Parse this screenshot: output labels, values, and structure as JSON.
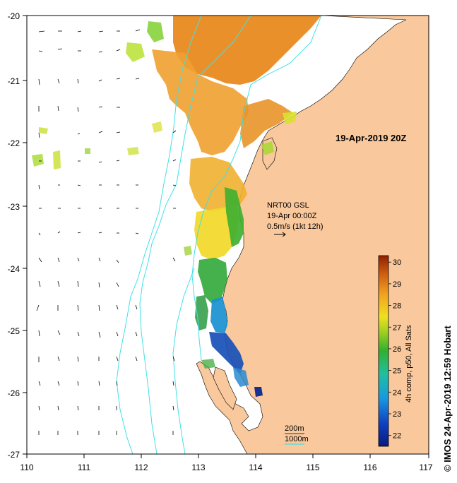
{
  "map": {
    "lon_range": [
      110,
      117
    ],
    "lat_range": [
      -27,
      -20
    ],
    "x_ticks": [
      "110",
      "111",
      "112",
      "113",
      "114",
      "115",
      "116",
      "117"
    ],
    "y_ticks": [
      "-20",
      "-21",
      "-22",
      "-23",
      "-24",
      "-25",
      "-26",
      "-27"
    ],
    "land_color": "#f9c89c",
    "ocean_color": "#ffffff",
    "contour_color": "#40e0e8"
  },
  "timestamp": "19-Apr-2019 20Z",
  "current_info": {
    "line1": "NRT00 GSL",
    "line2": "19-Apr 00:00Z",
    "line3": "0.5m/s (1kt 12h)"
  },
  "depth_legend": {
    "label_200": "200m",
    "label_1000": "1000m"
  },
  "colorbar": {
    "title": "4h comp, p50, All Sats",
    "ticks": [
      "22",
      "23",
      "24",
      "25",
      "26",
      "27",
      "28",
      "29",
      "30"
    ],
    "min": 21.5,
    "max": 30.3
  },
  "credit": "© IMOS 24-Apr-2019 12:59 Hobart"
}
